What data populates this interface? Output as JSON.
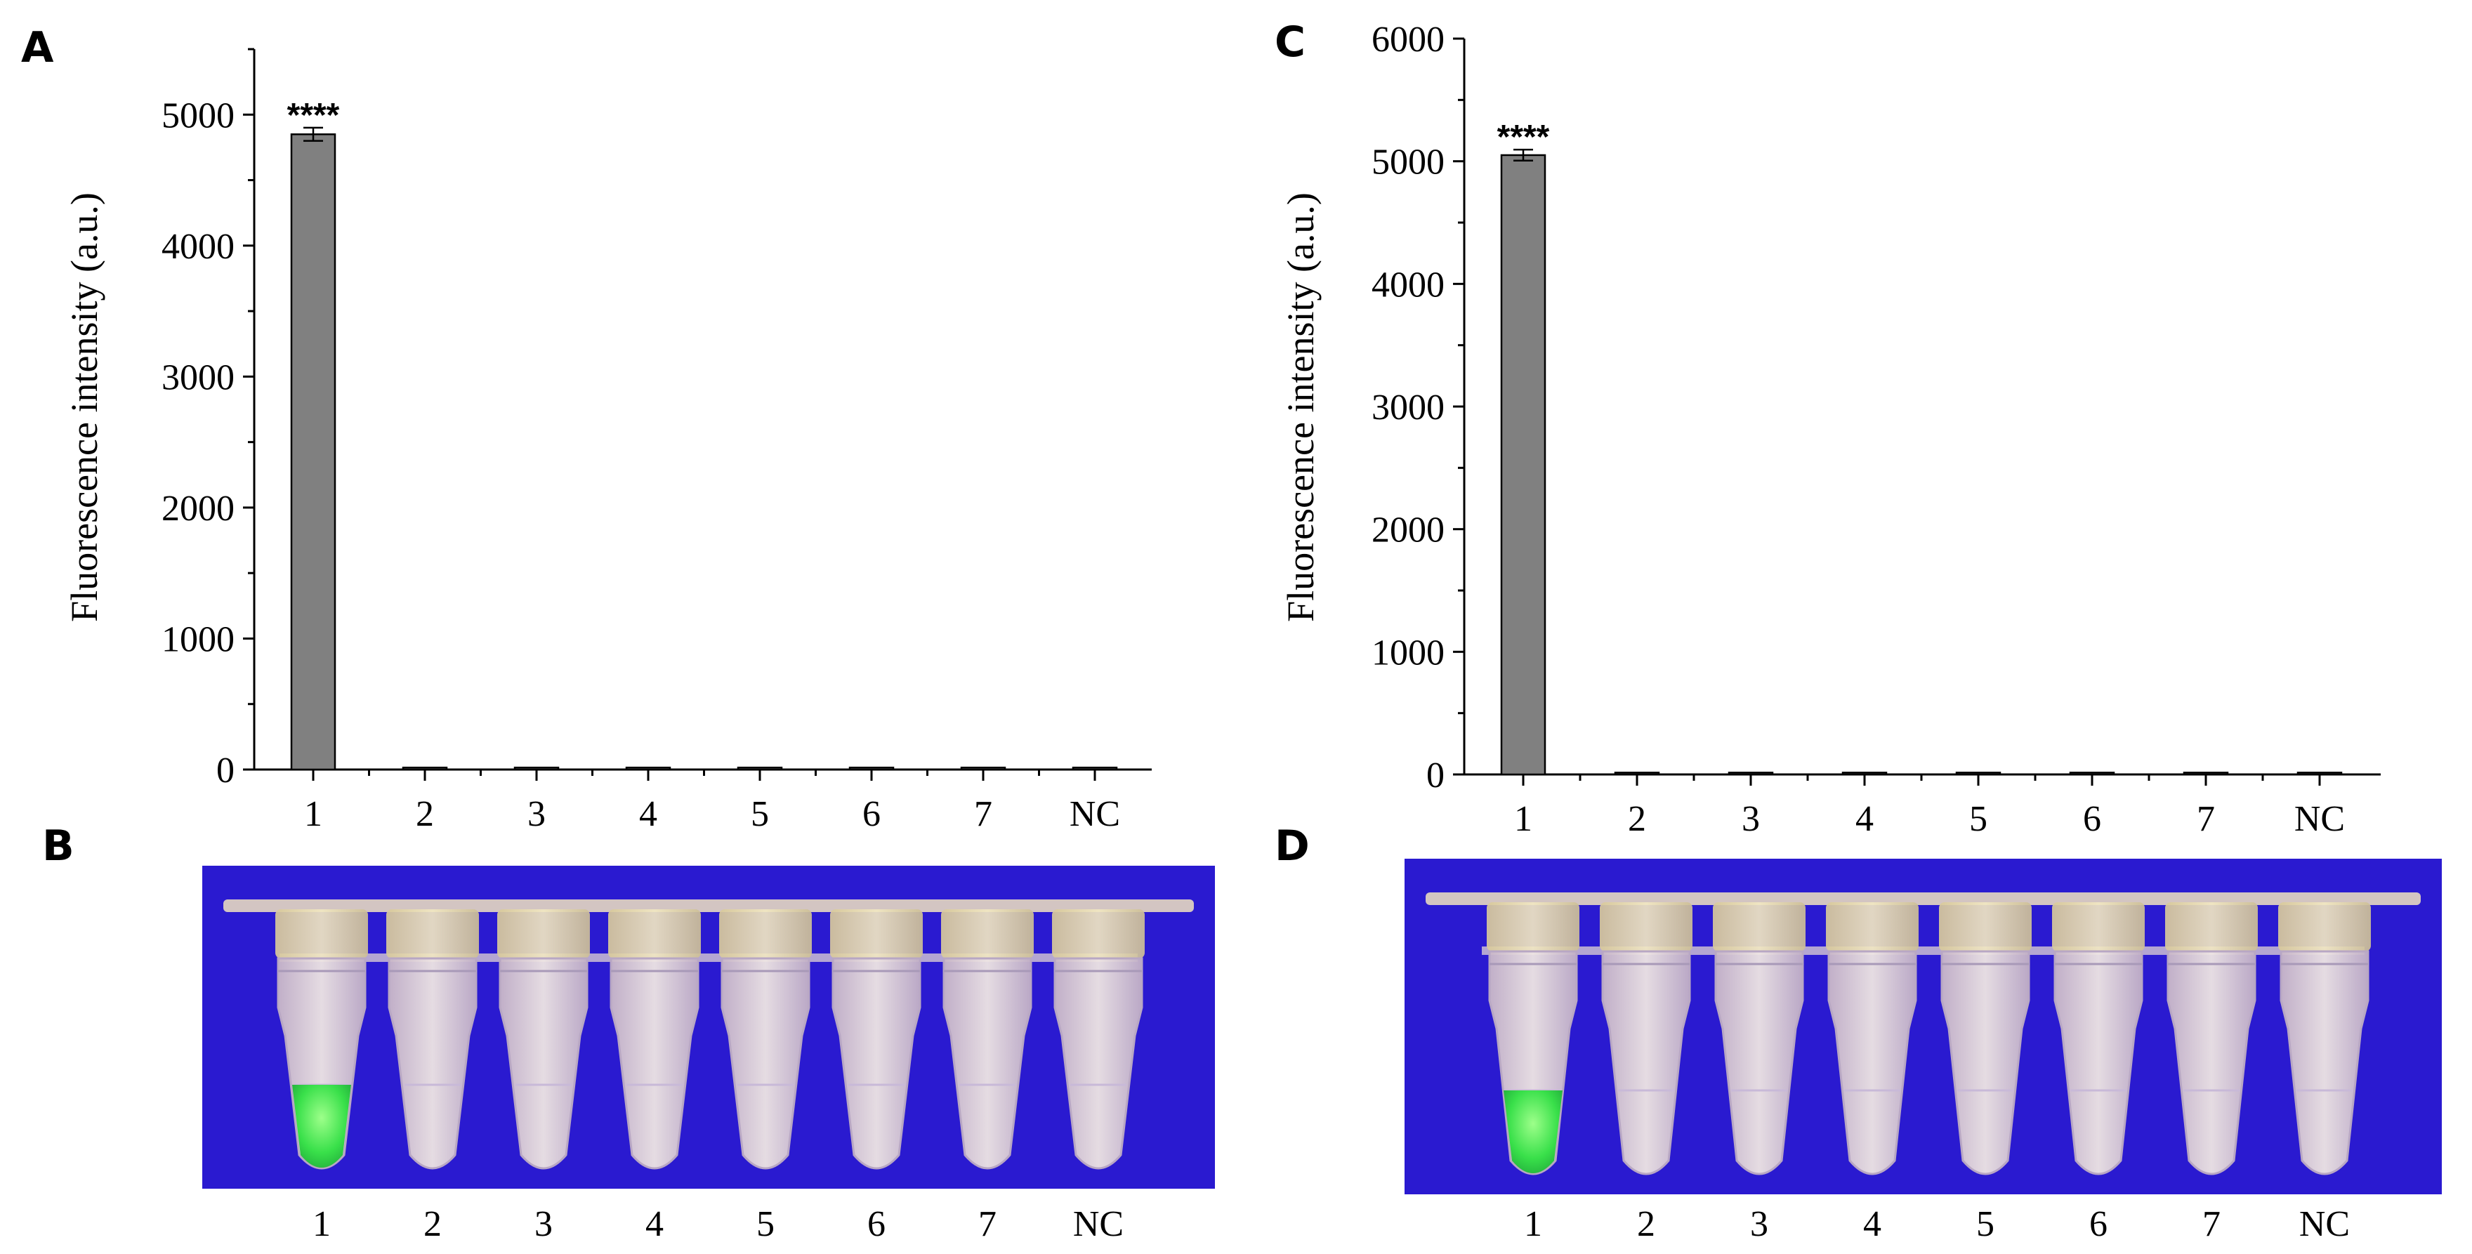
{
  "panels": {
    "A": "A",
    "B": "B",
    "C": "C",
    "D": "D"
  },
  "chart_data": [
    {
      "id": "A",
      "type": "bar",
      "title": "",
      "xlabel": "",
      "ylabel": "Fluorescence intensity (a.u.)",
      "categories": [
        "1",
        "2",
        "3",
        "4",
        "5",
        "6",
        "7",
        "NC"
      ],
      "values": [
        4850,
        15,
        15,
        15,
        15,
        15,
        15,
        15
      ],
      "errors": [
        50,
        0,
        0,
        0,
        0,
        0,
        0,
        0
      ],
      "annotations": [
        {
          "category": "1",
          "text": "****"
        }
      ],
      "ylim": [
        0,
        5500
      ],
      "yticks": [
        0,
        1000,
        2000,
        3000,
        4000,
        5000
      ],
      "ytick_labels": [
        "0",
        "1000",
        "2000",
        "3000",
        "4000",
        "5000"
      ],
      "bar_color": "#808080",
      "grid": false
    },
    {
      "id": "C",
      "type": "bar",
      "title": "",
      "xlabel": "",
      "ylabel": "Fluorescence intensity (a.u.)",
      "categories": [
        "1",
        "2",
        "3",
        "4",
        "5",
        "6",
        "7",
        "NC"
      ],
      "values": [
        5050,
        15,
        15,
        15,
        15,
        15,
        15,
        15
      ],
      "errors": [
        45,
        0,
        0,
        0,
        0,
        0,
        0,
        0
      ],
      "annotations": [
        {
          "category": "1",
          "text": "****"
        }
      ],
      "ylim": [
        0,
        6000
      ],
      "yticks": [
        0,
        1000,
        2000,
        3000,
        4000,
        5000,
        6000
      ],
      "ytick_labels": [
        "0",
        "1000",
        "2000",
        "3000",
        "4000",
        "5000",
        "6000"
      ],
      "bar_color": "#808080",
      "grid": false
    }
  ],
  "photos": [
    {
      "id": "B",
      "tube_labels": [
        "1",
        "2",
        "3",
        "4",
        "5",
        "6",
        "7",
        "NC"
      ],
      "positive_tube": "1",
      "background_color": "#2a1ad0",
      "positive_color": "#39e04a"
    },
    {
      "id": "D",
      "tube_labels": [
        "1",
        "2",
        "3",
        "4",
        "5",
        "6",
        "7",
        "NC"
      ],
      "positive_tube": "1",
      "background_color": "#2a1ad0",
      "positive_color": "#39e04a"
    }
  ]
}
